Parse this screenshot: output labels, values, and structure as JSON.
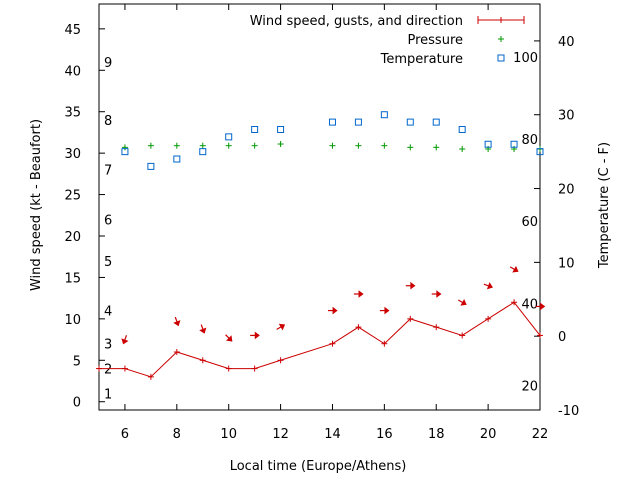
{
  "chart_data": {
    "type": "line",
    "title": "",
    "xlabel": "Local time (Europe/Athens)",
    "ylabel_left": "Wind speed (kt - Beaufort)",
    "ylabel_right": "Temperature (C - F)",
    "xlim": [
      5,
      22
    ],
    "ylim_left": [
      -1,
      48
    ],
    "ylim_right": [
      -10,
      45
    ],
    "x_ticks": [
      6,
      8,
      10,
      12,
      14,
      16,
      18,
      20,
      22
    ],
    "y_ticks_left": [
      0,
      5,
      10,
      15,
      20,
      25,
      30,
      35,
      40,
      45
    ],
    "y_ticks_right": [
      -10,
      0,
      10,
      20,
      30,
      40
    ],
    "beaufort_labels": [
      {
        "label": "1",
        "knots": 1
      },
      {
        "label": "2",
        "knots": 4
      },
      {
        "label": "3",
        "knots": 7
      },
      {
        "label": "4",
        "knots": 11
      },
      {
        "label": "5",
        "knots": 17
      },
      {
        "label": "6",
        "knots": 22
      },
      {
        "label": "7",
        "knots": 28
      },
      {
        "label": "8",
        "knots": 34
      },
      {
        "label": "9",
        "knots": 41
      }
    ],
    "fahrenheit_labels": [
      {
        "label": "20",
        "celsius": -6.7
      },
      {
        "label": "40",
        "celsius": 4.4
      },
      {
        "label": "60",
        "celsius": 15.6
      },
      {
        "label": "80",
        "celsius": 26.7
      },
      {
        "label": "100",
        "celsius": 37.8
      }
    ],
    "legend_position": "top-right",
    "series": [
      {
        "name": "Wind speed, gusts, and direction",
        "kind": "line",
        "axis": "left",
        "color": "#cc0000",
        "x": [
          5,
          6,
          7,
          8,
          9,
          10,
          11,
          12,
          14,
          15,
          16,
          17,
          18,
          19,
          20,
          21,
          22
        ],
        "values": [
          4,
          4,
          3,
          6,
          5,
          4,
          4,
          5,
          7,
          9,
          7,
          10,
          9,
          8,
          10,
          12,
          8
        ]
      },
      {
        "name": "Pressure",
        "kind": "marker",
        "marker": "plus",
        "axis": "left",
        "color": "#009900",
        "x": [
          6,
          7,
          8,
          9,
          10,
          11,
          12,
          14,
          15,
          16,
          17,
          18,
          19,
          20,
          21,
          22
        ],
        "values": [
          30.7,
          30.9,
          30.9,
          30.9,
          30.9,
          30.9,
          31.1,
          30.9,
          30.9,
          30.9,
          30.7,
          30.7,
          30.5,
          30.5,
          30.5,
          30.5
        ]
      },
      {
        "name": "Temperature",
        "kind": "marker",
        "marker": "square",
        "axis": "right",
        "color": "#0066cc",
        "x": [
          6,
          7,
          8,
          9,
          10,
          11,
          12,
          14,
          15,
          16,
          17,
          18,
          19,
          20,
          21,
          22
        ],
        "values": [
          25,
          23,
          24,
          25,
          27,
          28,
          28,
          29,
          29,
          30,
          29,
          29,
          28,
          26,
          26,
          25
        ]
      }
    ],
    "wind_direction_arrows": {
      "color": "#cc0000",
      "x": [
        6,
        8,
        9,
        10,
        11,
        12,
        14,
        15,
        16,
        17,
        18,
        19,
        20,
        21,
        22
      ],
      "y": [
        7.5,
        9.7,
        8.8,
        7.7,
        8.0,
        9.0,
        11.0,
        13.0,
        11.0,
        14.0,
        13.0,
        12.0,
        14.0,
        16.0,
        11.5
      ],
      "direction_deg": [
        20,
        340,
        340,
        315,
        270,
        240,
        270,
        270,
        270,
        270,
        270,
        300,
        290,
        300,
        270
      ]
    }
  }
}
